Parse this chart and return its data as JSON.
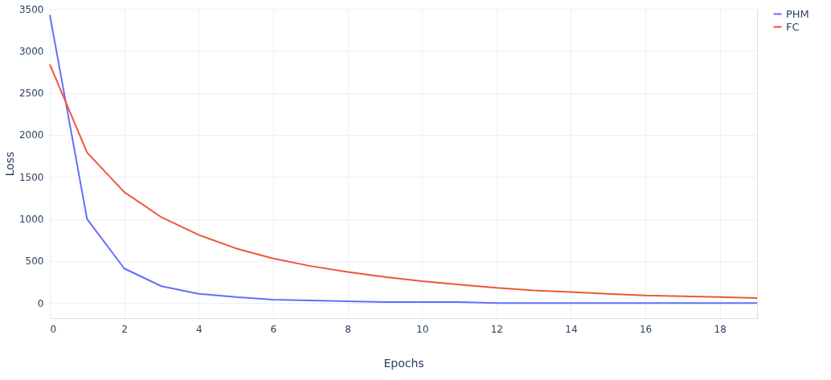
{
  "chart_data": {
    "type": "line",
    "xlabel": "Epochs",
    "ylabel": "Loss",
    "x": [
      0,
      1,
      2,
      3,
      4,
      5,
      6,
      7,
      8,
      9,
      10,
      11,
      12,
      13,
      14,
      15,
      16,
      17,
      18,
      19
    ],
    "series": [
      {
        "name": "PHM",
        "color": "#636efa",
        "values": [
          3430,
          1000,
          410,
          200,
          110,
          70,
          40,
          30,
          20,
          10,
          10,
          10,
          0,
          0,
          0,
          0,
          0,
          0,
          0,
          0
        ]
      },
      {
        "name": "FC",
        "color": "#ef553b",
        "values": [
          2840,
          1790,
          1320,
          1020,
          810,
          650,
          530,
          440,
          370,
          310,
          260,
          220,
          180,
          150,
          130,
          110,
          90,
          80,
          70,
          60
        ]
      }
    ],
    "xlim": [
      0,
      19
    ],
    "xticks": [
      0,
      2,
      4,
      6,
      8,
      10,
      12,
      14,
      16,
      18
    ],
    "ylim": [
      -180,
      3500
    ],
    "yticks": [
      0,
      500,
      1000,
      1500,
      2000,
      2500,
      3000,
      3500
    ],
    "grid": true,
    "legend": "top right",
    "marker": "none",
    "line_style": "solid"
  }
}
